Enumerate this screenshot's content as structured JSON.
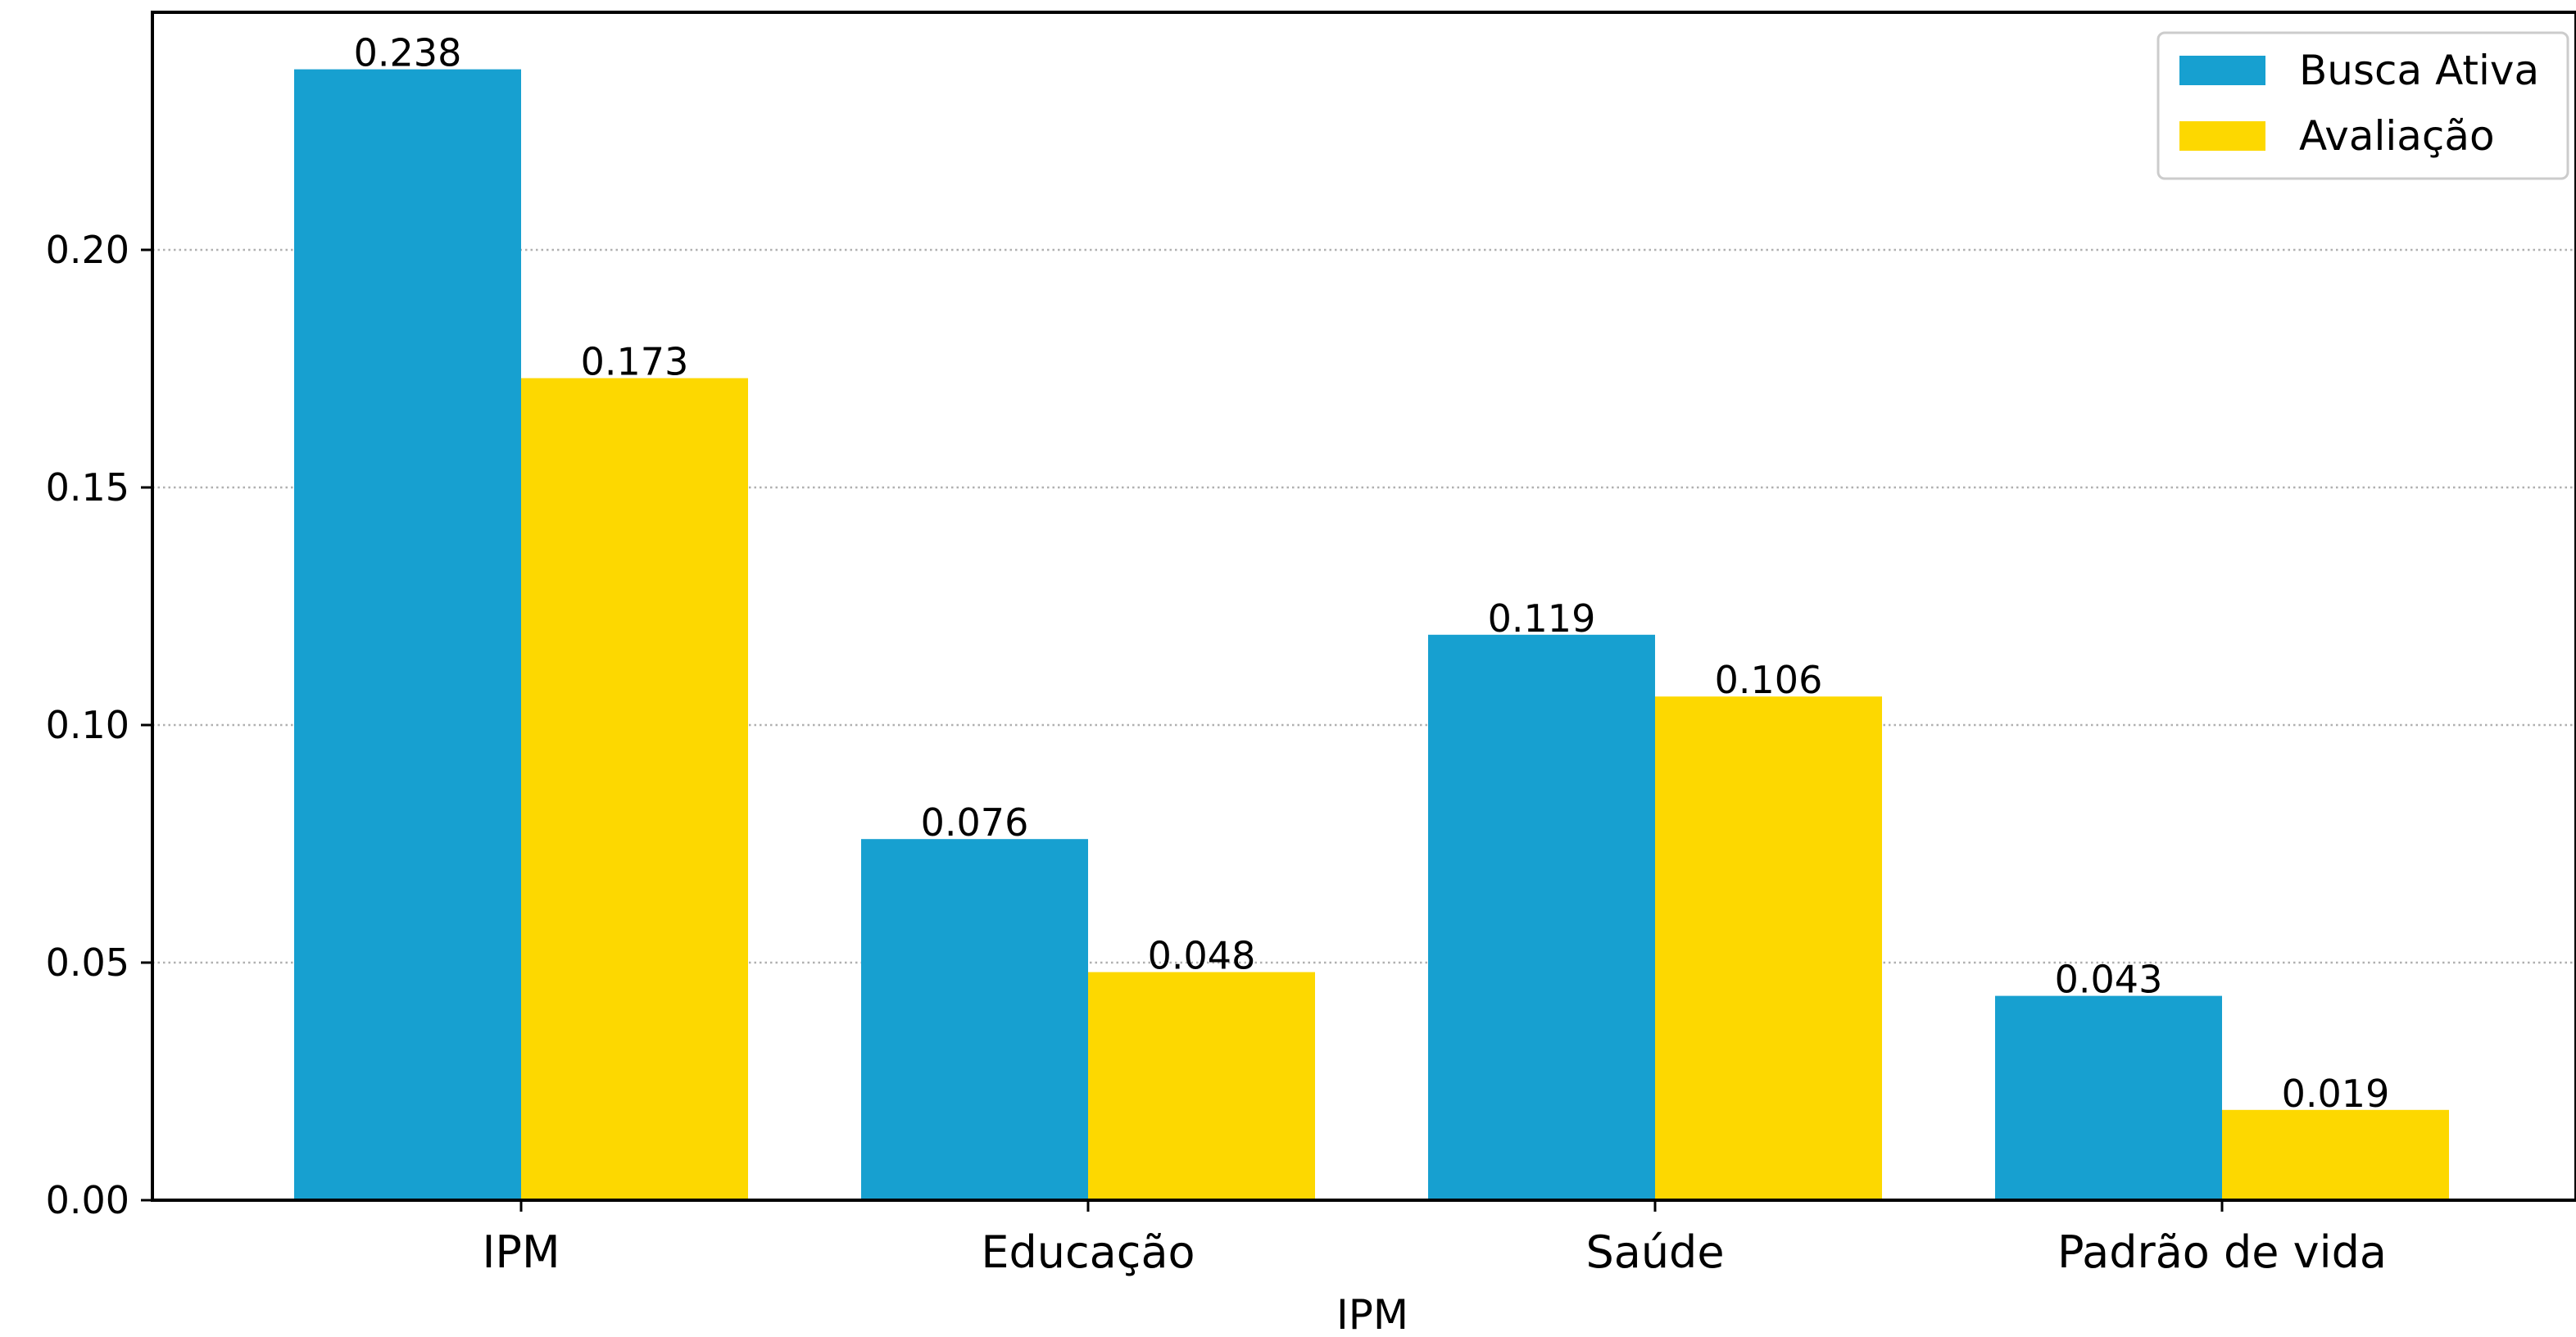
{
  "chart_data": {
    "type": "bar",
    "title": "",
    "xlabel": "IPM",
    "ylabel": "",
    "categories": [
      "IPM",
      "Educação",
      "Saúde",
      "Padrão de vida"
    ],
    "series": [
      {
        "name": "Busca Ativa",
        "color": "#17a0d0",
        "values": [
          0.238,
          0.076,
          0.119,
          0.043
        ],
        "labels": [
          "0.238",
          "0.076",
          "0.119",
          "0.043"
        ]
      },
      {
        "name": "Avaliação",
        "color": "#fdd800",
        "values": [
          0.173,
          0.048,
          0.106,
          0.019
        ],
        "labels": [
          "0.173",
          "0.048",
          "0.106",
          "0.019"
        ]
      }
    ],
    "ylim": [
      0,
      0.25
    ],
    "yticks": [
      0.0,
      0.05,
      0.1,
      0.15,
      0.2
    ],
    "ytick_labels": [
      "0.00",
      "0.05",
      "0.10",
      "0.15",
      "0.20"
    ],
    "grid": "y-dotted",
    "legend_position": "top-right"
  }
}
